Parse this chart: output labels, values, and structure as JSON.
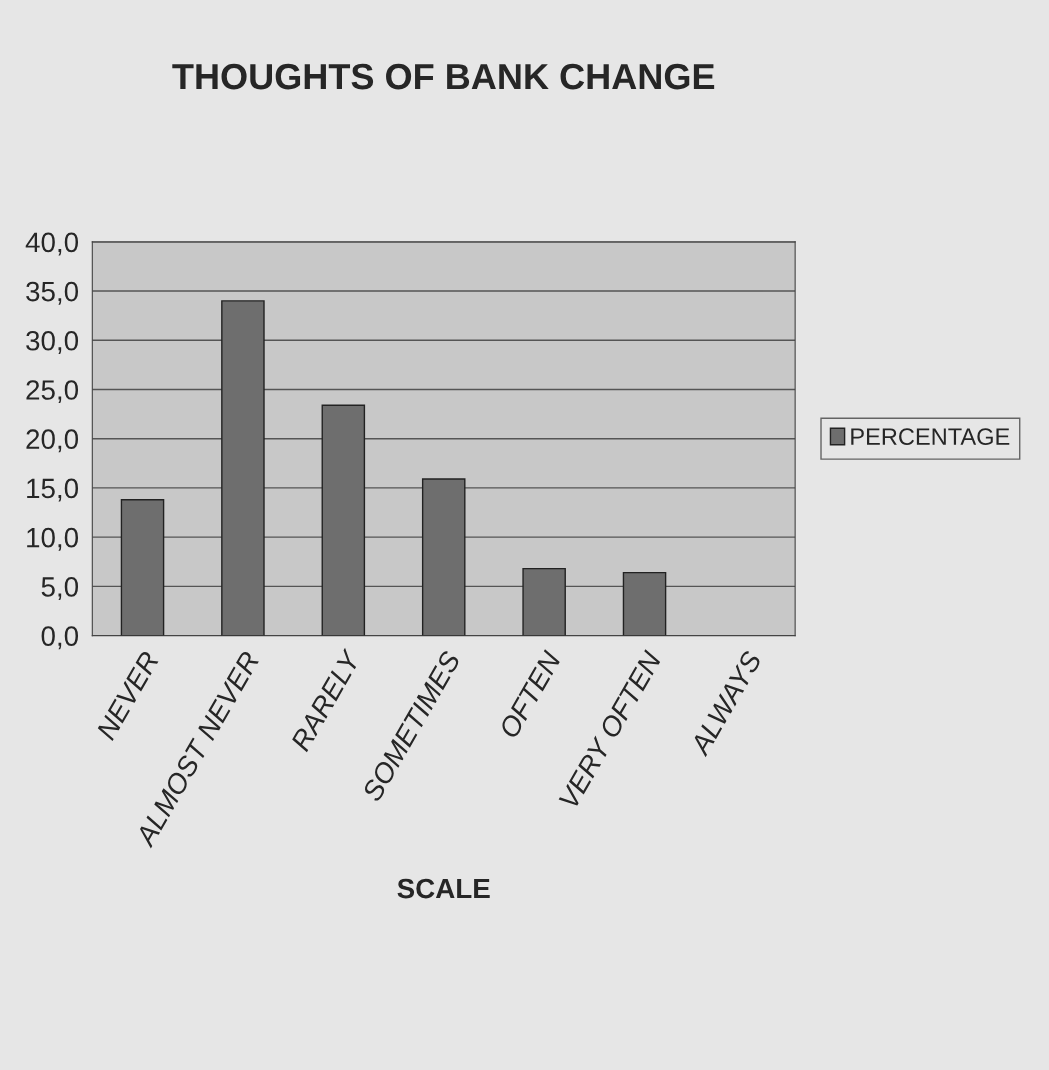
{
  "chart_data": {
    "type": "bar",
    "title": "THOUGHTS OF BANK CHANGE",
    "xlabel": "SCALE",
    "categories": [
      "NEVER",
      "ALMOST NEVER",
      "RARELY",
      "SOMETIMES",
      "OFTEN",
      "VERY OFTEN",
      "ALWAYS"
    ],
    "series": [
      {
        "name": "PERCENTAGE",
        "color": "#6e6e6e",
        "values": [
          13.8,
          34.0,
          23.4,
          15.9,
          6.8,
          6.4,
          0.0
        ]
      }
    ],
    "ylim": [
      0,
      40
    ],
    "yticks": [
      {
        "value": 0,
        "label": "0,0"
      },
      {
        "value": 5,
        "label": "5,0"
      },
      {
        "value": 10,
        "label": "10,0"
      },
      {
        "value": 15,
        "label": "15,0"
      },
      {
        "value": 20,
        "label": "20,0"
      },
      {
        "value": 25,
        "label": "25,0"
      },
      {
        "value": 30,
        "label": "30,0"
      },
      {
        "value": 35,
        "label": "35,0"
      },
      {
        "value": 40,
        "label": "40,0"
      }
    ],
    "grid": "y",
    "legend": "right"
  }
}
